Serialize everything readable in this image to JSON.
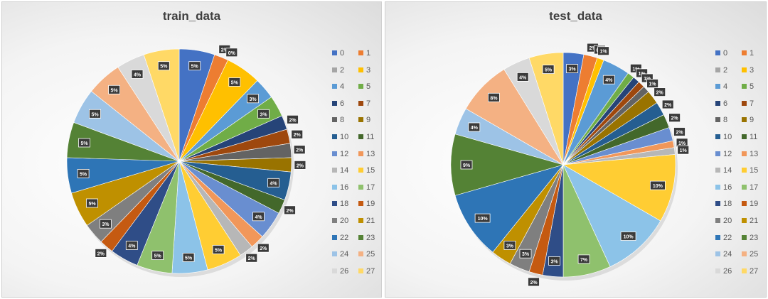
{
  "charts": [
    {
      "title": "train_data",
      "labels": [
        "5%",
        "2%",
        "0%",
        "5%",
        "3%",
        "3%",
        "2%",
        "2%",
        "2%",
        "2%",
        "4%",
        "2%",
        "4%",
        "2%",
        "2%",
        "5%",
        "5%",
        "5%",
        "4%",
        "2%",
        "3%",
        "5%",
        "5%",
        "5%",
        "5%",
        "5%",
        "4%",
        "5%"
      ]
    },
    {
      "title": "test_data",
      "labels": [
        "3%",
        "2%",
        "0%",
        "1%",
        "4%",
        "1%",
        "1%",
        "1%",
        "1%",
        "2%",
        "2%",
        "2%",
        "2%",
        "1%",
        "1%",
        "10%",
        "10%",
        "7%",
        "3%",
        "2%",
        "3%",
        "3%",
        "10%",
        "9%",
        "4%",
        "8%",
        "4%",
        "5%"
      ]
    }
  ],
  "legend": [
    "0",
    "1",
    "2",
    "3",
    "4",
    "5",
    "6",
    "7",
    "8",
    "9",
    "10",
    "11",
    "12",
    "13",
    "14",
    "15",
    "16",
    "17",
    "18",
    "19",
    "20",
    "21",
    "22",
    "23",
    "24",
    "25",
    "26",
    "27"
  ],
  "colors": [
    "#4472c4",
    "#ed7d31",
    "#a5a5a5",
    "#ffc000",
    "#5b9bd5",
    "#70ad47",
    "#264478",
    "#9e480e",
    "#636363",
    "#997300",
    "#255e91",
    "#43682b",
    "#698ed0",
    "#f1975a",
    "#b7b7b7",
    "#ffcd33",
    "#8cc3e8",
    "#8fc16d",
    "#2f4d87",
    "#c55a11",
    "#7f7f7f",
    "#bf9000",
    "#2e75b6",
    "#548235",
    "#9dc3e6",
    "#f4b183",
    "#d9d9d9",
    "#ffd966"
  ],
  "chart_data": [
    {
      "type": "pie",
      "title": "train_data",
      "categories": [
        "0",
        "1",
        "2",
        "3",
        "4",
        "5",
        "6",
        "7",
        "8",
        "9",
        "10",
        "11",
        "12",
        "13",
        "14",
        "15",
        "16",
        "17",
        "18",
        "19",
        "20",
        "21",
        "22",
        "23",
        "24",
        "25",
        "26",
        "27"
      ],
      "values": [
        5,
        2,
        0,
        5,
        3,
        3,
        2,
        2,
        2,
        2,
        4,
        2,
        4,
        2,
        2,
        5,
        5,
        5,
        4,
        2,
        3,
        5,
        5,
        5,
        5,
        5,
        4,
        5
      ],
      "legend_position": "right"
    },
    {
      "type": "pie",
      "title": "test_data",
      "categories": [
        "0",
        "1",
        "2",
        "3",
        "4",
        "5",
        "6",
        "7",
        "8",
        "9",
        "10",
        "11",
        "12",
        "13",
        "14",
        "15",
        "16",
        "17",
        "18",
        "19",
        "20",
        "21",
        "22",
        "23",
        "24",
        "25",
        "26",
        "27"
      ],
      "values": [
        3,
        2,
        0,
        1,
        4,
        1,
        1,
        1,
        1,
        2,
        2,
        2,
        2,
        1,
        1,
        10,
        10,
        7,
        3,
        2,
        3,
        3,
        10,
        9,
        4,
        8,
        4,
        5
      ],
      "legend_position": "right"
    }
  ]
}
